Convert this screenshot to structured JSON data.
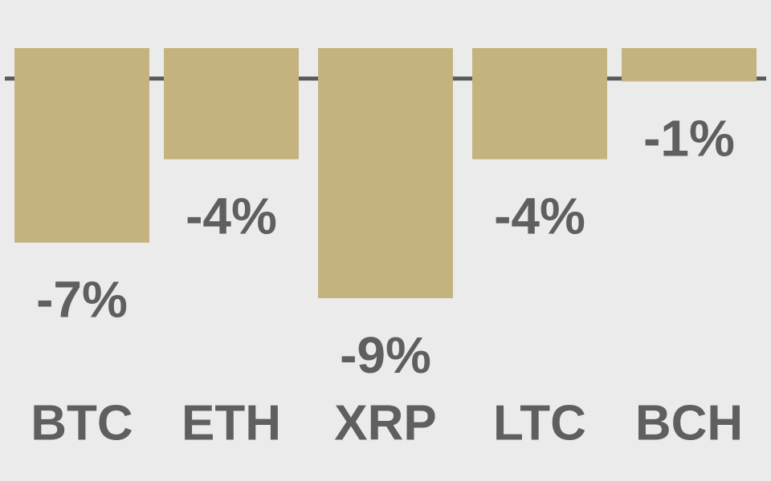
{
  "chart_data": {
    "type": "bar",
    "categories": [
      "BTC",
      "ETH",
      "XRP",
      "LTC",
      "BCH"
    ],
    "values": [
      -7,
      -4,
      -9,
      -4,
      -1.2
    ],
    "value_labels": [
      "-7%",
      "-4%",
      "-9%",
      "-4%",
      "-1%"
    ],
    "color": "#c5b37f",
    "ylim": [
      -15,
      0
    ]
  }
}
